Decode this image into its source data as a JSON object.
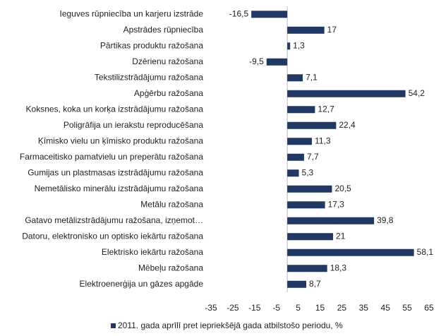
{
  "chart_data": {
    "type": "bar",
    "orientation": "horizontal",
    "categories": [
      "Ieguves rūpniecība un karjeru izstrāde",
      "Apstrādes rūpniecība",
      "Pārtikas produktu  ražošana",
      "Dzērienu ražošana",
      "Tekstilizstrādājumu ražošana",
      "Apģērbu ražošana",
      "Koksnes, koka un korķa izstrādājumu ražošana",
      "Poligrāfija un ierakstu reproducēšana",
      "Ķīmisko vielu un ķīmisko produktu ražošana",
      "Farmaceitisko pamatvielu un preperātu ražošana",
      "Gumijas un plastmasas izstrādājumu ražošana",
      "Nemetālisko minerālu izstrādājumu ražošana",
      "Metālu ražošana",
      "Gatavo metālizstrādājumu ražošana, izņemot…",
      "Datoru, elektronisko un optisko iekārtu ražošana",
      "Elektrisko iekārtu ražošana",
      "Mēbeļu ražošana",
      "Elektroenerģija un gāzes apgāde"
    ],
    "series": [
      {
        "name": "2011. gada aprīlī pret iepriekšējā gada atbilstošo periodu, %",
        "color": "#1f3864",
        "values": [
          -16.5,
          17,
          1.3,
          -9.5,
          7.1,
          54.2,
          12.7,
          22.4,
          11.3,
          7.7,
          5.3,
          20.5,
          17.3,
          39.8,
          21,
          58.1,
          18.3,
          8.7
        ],
        "value_labels": [
          "-16,5",
          "17",
          "1,3",
          "-9,5",
          "7,1",
          "54,2",
          "12,7",
          "22,4",
          "11,3",
          "7,7",
          "5,3",
          "20,5",
          "17,3",
          "39,8",
          "21",
          "58,1",
          "18,3",
          "8,7"
        ]
      }
    ],
    "xlim": [
      -35,
      65
    ],
    "xticks": [
      -35,
      -25,
      -15,
      -5,
      5,
      15,
      25,
      35,
      45,
      55,
      65
    ],
    "legend": "bottom"
  }
}
